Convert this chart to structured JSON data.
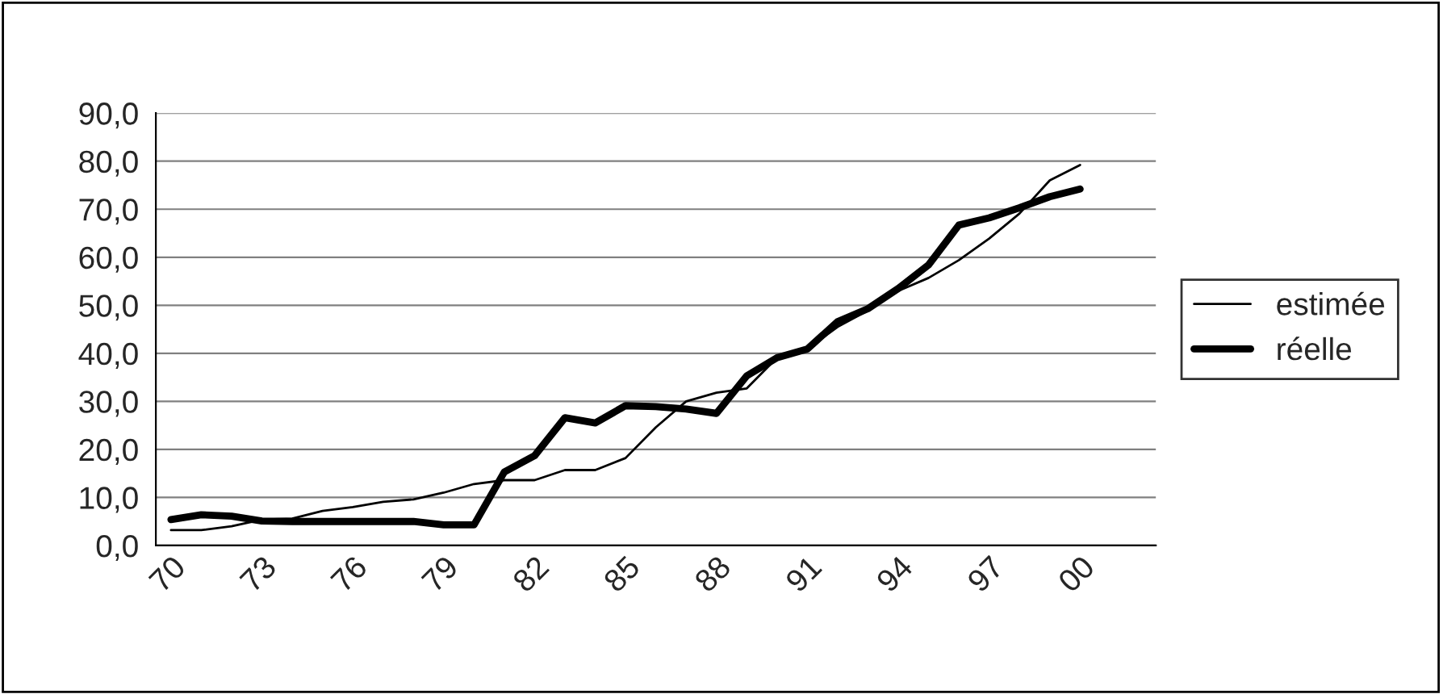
{
  "chart_data": {
    "type": "line",
    "categories": [
      "70",
      null,
      null,
      "73",
      null,
      null,
      "76",
      null,
      null,
      "79",
      null,
      null,
      "82",
      null,
      null,
      "85",
      null,
      null,
      "88",
      null,
      null,
      "91",
      null,
      null,
      "94",
      null,
      null,
      "97",
      null,
      null,
      "00",
      null,
      null
    ],
    "series": [
      {
        "name": "estimée",
        "color": "#000000",
        "values": [
          3.2,
          3.2,
          4.0,
          5.4,
          5.6,
          7.2,
          8.0,
          9.1,
          9.6,
          11.0,
          12.8,
          13.6,
          13.6,
          15.7,
          15.7,
          18.2,
          24.6,
          30.0,
          31.8,
          32.7,
          39.1,
          40.9,
          45.5,
          48.9,
          53.0,
          55.7,
          59.4,
          63.9,
          69.1,
          76.0,
          79.2,
          null,
          null
        ]
      },
      {
        "name": "réelle",
        "color": "#000000",
        "values": [
          5.4,
          6.4,
          6.1,
          5.1,
          5.0,
          5.0,
          5.0,
          5.0,
          5.0,
          4.3,
          4.3,
          15.3,
          18.7,
          26.6,
          25.5,
          29.1,
          28.9,
          28.4,
          27.5,
          35.3,
          39.1,
          40.9,
          46.6,
          49.3,
          53.5,
          58.4,
          66.7,
          68.2,
          70.3,
          72.6,
          74.2,
          null,
          null
        ]
      }
    ],
    "ylim": [
      0,
      90
    ],
    "yticks": [
      {
        "value": 0,
        "label": "0,0"
      },
      {
        "value": 10,
        "label": "10,0"
      },
      {
        "value": 20,
        "label": "20,0"
      },
      {
        "value": 30,
        "label": "30,0"
      },
      {
        "value": 40,
        "label": "40,0"
      },
      {
        "value": 50,
        "label": "50,0"
      },
      {
        "value": 60,
        "label": "60,0"
      },
      {
        "value": 70,
        "label": "70,0"
      },
      {
        "value": 80,
        "label": "80,0"
      },
      {
        "value": 90,
        "label": "90,0"
      }
    ],
    "grid": "y",
    "legend": "right"
  }
}
